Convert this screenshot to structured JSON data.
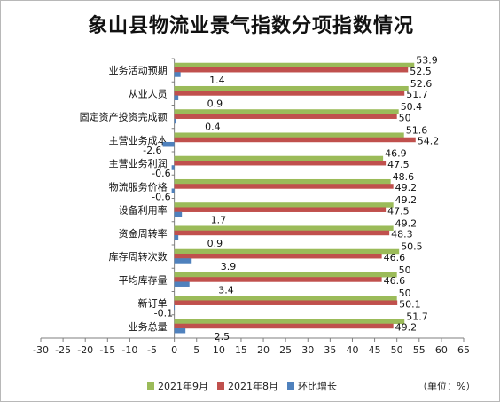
{
  "chart_data": {
    "type": "bar",
    "orientation": "horizontal",
    "title": "象山县物流业景气指数分项指数情况",
    "categories": [
      "业务活动预期",
      "从业人员",
      "固定资产投资完成额",
      "主营业务成本",
      "主营业务利润",
      "物流服务价格",
      "设备利用率",
      "资金周转率",
      "库存周转次数",
      "平均库存量",
      "新订单",
      "业务总量"
    ],
    "series": [
      {
        "name": "2021年9月",
        "color": "#9bbb59",
        "values": [
          53.9,
          52.6,
          50.4,
          51.6,
          46.9,
          48.6,
          49.2,
          49.2,
          50.5,
          50,
          50,
          51.7
        ]
      },
      {
        "name": "2021年8月",
        "color": "#c0504d",
        "values": [
          52.5,
          51.7,
          50,
          54.2,
          47.5,
          49.2,
          47.5,
          48.3,
          46.6,
          46.6,
          50.1,
          49.2
        ]
      },
      {
        "name": "环比增长",
        "color": "#4f81bd",
        "values": [
          1.4,
          0.9,
          0.4,
          -2.6,
          -0.6,
          -0.6,
          1.7,
          0.9,
          3.9,
          3.4,
          -0.1,
          2.5
        ]
      }
    ],
    "xlim": [
      -30,
      65
    ],
    "xticks": [
      -30,
      -25,
      -20,
      -15,
      -10,
      -5,
      0,
      5,
      10,
      15,
      20,
      25,
      30,
      35,
      40,
      45,
      50,
      55,
      60,
      65
    ],
    "unit_note": "（单位：%）"
  }
}
